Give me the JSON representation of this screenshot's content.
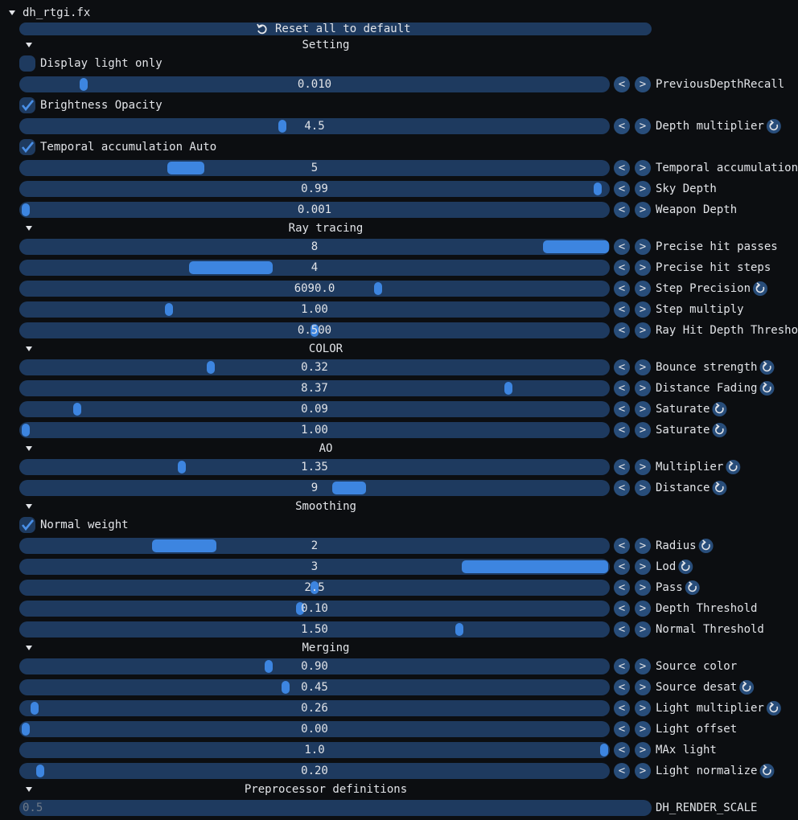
{
  "title": "dh_rtgi.fx",
  "reset_button": "Reset all to default",
  "step_buttons": [
    "<",
    ">"
  ],
  "sections": [
    {
      "title": "Setting",
      "items": [
        {
          "kind": "checkbox",
          "label": "Display light only",
          "checked": false
        },
        {
          "kind": "slider",
          "value": "0.010",
          "label": "PreviousDepthRecall",
          "reset": false
        },
        {
          "kind": "checkbox",
          "label": "Brightness Opacity",
          "checked": true
        },
        {
          "kind": "slider",
          "value": "4.5",
          "label": "Depth multiplier",
          "reset": true
        },
        {
          "kind": "checkbox",
          "label": "Temporal accumulation Auto",
          "checked": true
        },
        {
          "kind": "slider",
          "value": "5",
          "label": "Temporal accumulation",
          "reset": false
        },
        {
          "kind": "slider",
          "value": "0.99",
          "label": "Sky Depth",
          "reset": false
        },
        {
          "kind": "slider",
          "value": "0.001",
          "label": "Weapon Depth",
          "reset": false
        }
      ]
    },
    {
      "title": "Ray tracing",
      "items": [
        {
          "kind": "slider",
          "value": "8",
          "label": "Precise hit passes",
          "reset": false
        },
        {
          "kind": "slider",
          "value": "4",
          "label": "Precise hit steps",
          "reset": false
        },
        {
          "kind": "slider",
          "value": "6090.0",
          "label": "Step Precision",
          "reset": true
        },
        {
          "kind": "slider",
          "value": "1.00",
          "label": "Step multiply",
          "reset": false
        },
        {
          "kind": "slider",
          "value": "0.500",
          "label": "Ray Hit Depth Thresho",
          "reset": false
        }
      ]
    },
    {
      "title": "COLOR",
      "items": [
        {
          "kind": "slider",
          "value": "0.32",
          "label": "Bounce strength",
          "reset": true
        },
        {
          "kind": "slider",
          "value": "8.37",
          "label": "Distance Fading",
          "reset": true
        },
        {
          "kind": "slider",
          "value": "0.09",
          "label": "Saturate",
          "reset": true
        },
        {
          "kind": "slider",
          "value": "1.00",
          "label": "Saturate",
          "reset": true
        }
      ]
    },
    {
      "title": "AO",
      "items": [
        {
          "kind": "slider",
          "value": "1.35",
          "label": "Multiplier",
          "reset": true
        },
        {
          "kind": "slider",
          "value": "9",
          "label": "Distance",
          "reset": true
        }
      ]
    },
    {
      "title": "Smoothing",
      "items": [
        {
          "kind": "checkbox",
          "label": "Normal weight",
          "checked": true
        },
        {
          "kind": "slider",
          "value": "2",
          "label": "Radius",
          "reset": true
        },
        {
          "kind": "slider",
          "value": "3",
          "label": "Lod",
          "reset": true
        },
        {
          "kind": "slider",
          "value": "2.5",
          "label": "Pass",
          "reset": true
        },
        {
          "kind": "slider",
          "value": "0.10",
          "label": "Depth Threshold",
          "reset": false
        },
        {
          "kind": "slider",
          "value": "1.50",
          "label": "Normal Threshold",
          "reset": false
        }
      ]
    },
    {
      "title": "Merging",
      "items": [
        {
          "kind": "slider",
          "value": "0.90",
          "label": "Source color",
          "reset": false
        },
        {
          "kind": "slider",
          "value": "0.45",
          "label": "Source desat",
          "reset": true
        },
        {
          "kind": "slider",
          "value": "0.26",
          "label": "Light multiplier",
          "reset": true
        },
        {
          "kind": "slider",
          "value": "0.00",
          "label": "Light offset",
          "reset": false
        },
        {
          "kind": "slider",
          "value": "1.0",
          "label": "MAx light",
          "reset": false
        },
        {
          "kind": "slider",
          "value": "0.20",
          "label": "Light normalize",
          "reset": true
        }
      ]
    },
    {
      "title": "Preprocessor definitions",
      "items": [
        {
          "kind": "input",
          "value": "0.5",
          "label": "DH_RENDER_SCALE"
        }
      ]
    }
  ]
}
